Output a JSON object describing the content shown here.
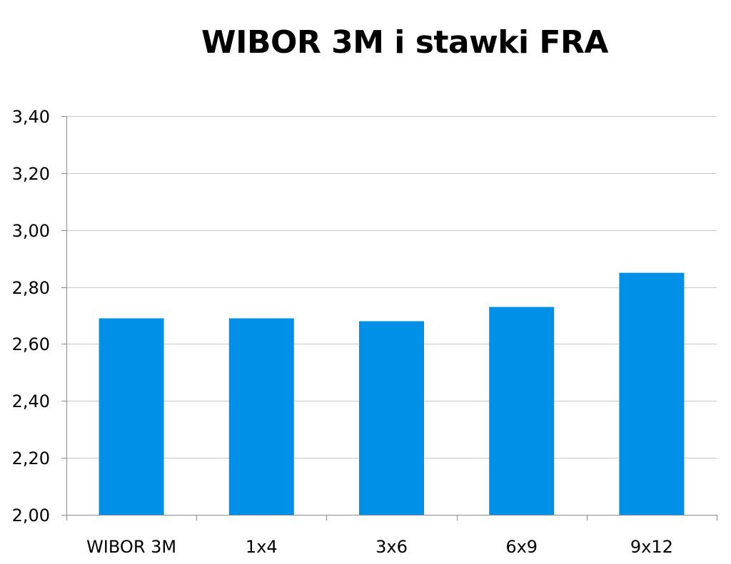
{
  "chart_data": {
    "type": "bar",
    "title": "WIBOR 3M i stawki FRA",
    "xlabel": "",
    "ylabel": "",
    "categories": [
      "WIBOR 3M",
      "1x4",
      "3x6",
      "6x9",
      "9x12"
    ],
    "series": [
      {
        "values": [
          2.69,
          2.69,
          2.68,
          2.73,
          2.85
        ],
        "color": "#0090E8"
      }
    ],
    "ylim": [
      2.0,
      3.4
    ],
    "yticks": [
      2.0,
      2.2,
      2.4,
      2.6,
      2.8,
      3.0,
      3.2,
      3.4
    ],
    "ytick_labels": [
      "2,00",
      "2,20",
      "2,40",
      "2,60",
      "2,80",
      "3,00",
      "3,20",
      "3,40"
    ],
    "grid": true,
    "legend": "none"
  }
}
